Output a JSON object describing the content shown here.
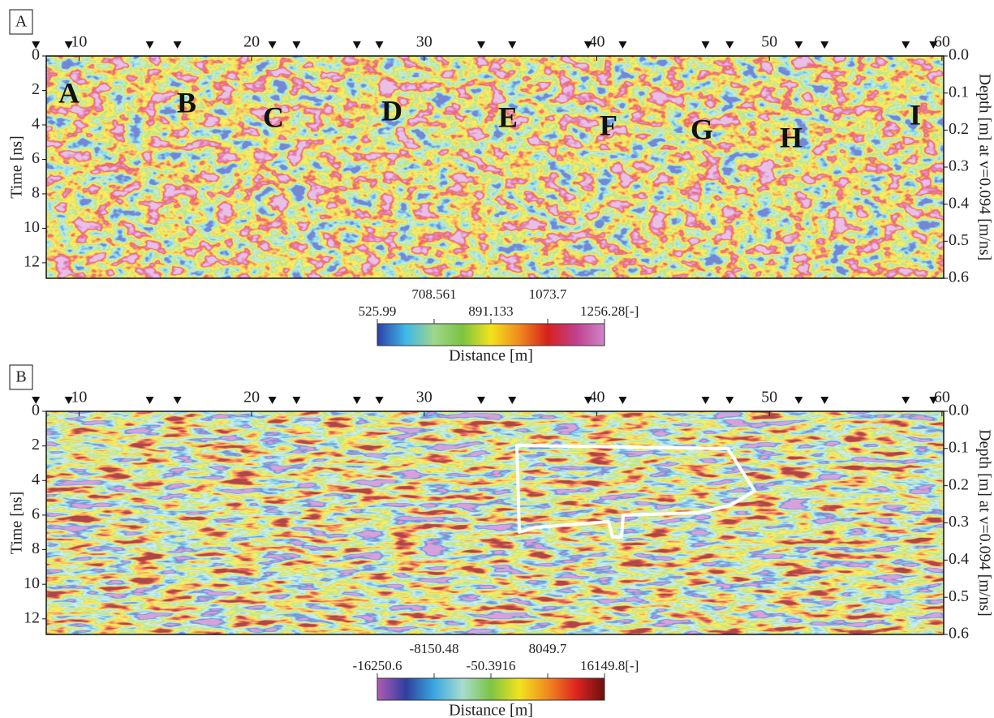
{
  "chart_data": [
    {
      "type": "heatmap",
      "panel_label": "A",
      "xlim": [
        8.1,
        60.1
      ],
      "xticks": [
        10,
        20,
        30,
        40,
        50,
        60
      ],
      "ylim": [
        0,
        12.9
      ],
      "y_inverted": true,
      "yticks": [
        0,
        2,
        4,
        6,
        8,
        10,
        12
      ],
      "ylabel": "Time [ns]",
      "y2lim": [
        0,
        0.6
      ],
      "y2ticks": [
        {
          "value": 0,
          "label": "0.0"
        },
        0.1,
        0.2,
        0.3,
        0.4,
        0.5,
        0.6
      ],
      "y2label": "Depth [m] at v=0.094 [m/ns]",
      "markers": [
        7.5,
        9.4,
        14.1,
        15.7,
        21.2,
        22.6,
        26.1,
        27.4,
        33.3,
        35.1,
        39.5,
        41.5,
        46.3,
        47.7,
        51.7,
        53.2,
        57.9,
        59.5
      ],
      "annotations": [
        "A",
        "B",
        "C",
        "D",
        "E",
        "F",
        "G",
        "H",
        "I"
      ],
      "colorbar": {
        "label": "Distance [m]",
        "lim": [
          525.99,
          1256.28
        ],
        "ticks": [
          525.99,
          708.561,
          891.133,
          1073.7,
          {
            "value": 1256.28,
            "label": "1256.28[-]"
          }
        ],
        "colors": [
          "#2e3fa8",
          "#3fb8e8",
          "#9fd68a",
          "#7cc441",
          "#f4e21c",
          "#f08a1f",
          "#d6211d",
          "#c0408f",
          "#cf86c9"
        ]
      }
    },
    {
      "type": "heatmap",
      "panel_label": "B",
      "xlim": [
        8.1,
        60.1
      ],
      "xticks": [
        10,
        20,
        30,
        40,
        50,
        60
      ],
      "ylim": [
        0,
        12.9
      ],
      "y_inverted": true,
      "yticks": [
        0,
        2,
        4,
        6,
        8,
        10,
        12
      ],
      "ylabel": "Time [ns]",
      "y2lim": [
        0,
        0.6
      ],
      "y2ticks": [
        {
          "value": 0,
          "label": "0.0"
        },
        0.1,
        0.2,
        0.3,
        0.4,
        0.5,
        0.6
      ],
      "y2label": "Depth [m] at v=0.094 [m/ns]",
      "markers": [
        7.5,
        9.4,
        14.1,
        15.7,
        21.2,
        22.6,
        26.1,
        27.4,
        33.3,
        35.1,
        39.5,
        41.5,
        46.3,
        47.7,
        51.7,
        53.2,
        57.9,
        59.5
      ],
      "colorbar": {
        "label": "Distance [m]",
        "lim": [
          -16250.6,
          16149.8
        ],
        "ticks": [
          -16250.6,
          -8150.48,
          -50.3916,
          8049.7,
          {
            "value": 16149.8,
            "label": "16149.8[-]"
          }
        ],
        "colors": [
          "#b05bb5",
          "#2f3f9e",
          "#3aa7e0",
          "#a8dcd0",
          "#7dc443",
          "#f2e31d",
          "#f08a1f",
          "#e02420",
          "#6a1010"
        ]
      }
    }
  ]
}
